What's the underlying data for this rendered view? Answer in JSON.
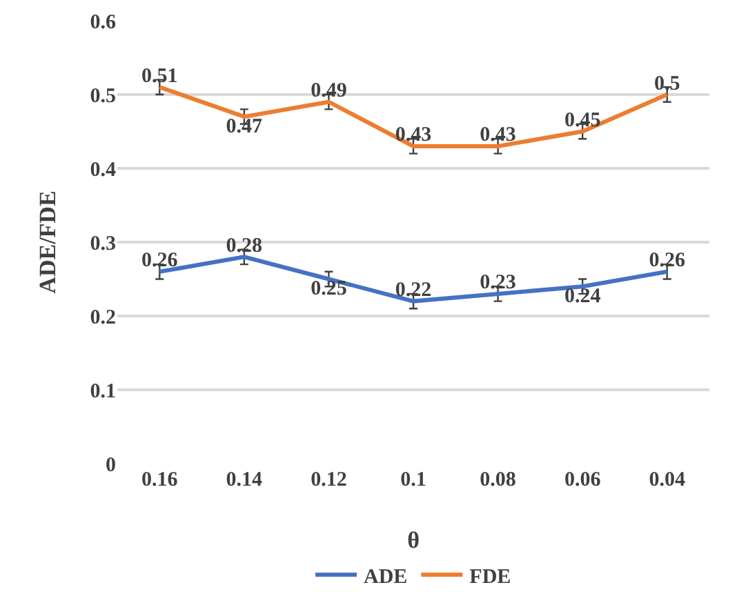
{
  "chart_data": {
    "type": "line",
    "xlabel": "θ",
    "ylabel": "ADE/FDE",
    "categories": [
      "0.16",
      "0.14",
      "0.12",
      "0.1",
      "0.08",
      "0.06",
      "0.04"
    ],
    "series": [
      {
        "name": "ADE",
        "color": "#4472c4",
        "values": [
          0.26,
          0.28,
          0.25,
          0.22,
          0.23,
          0.24,
          0.26
        ],
        "errors": [
          0.01,
          0.01,
          0.01,
          0.01,
          0.01,
          0.01,
          0.01
        ]
      },
      {
        "name": "FDE",
        "color": "#ed7d31",
        "values": [
          0.51,
          0.47,
          0.49,
          0.43,
          0.43,
          0.45,
          0.5
        ],
        "errors": [
          0.01,
          0.01,
          0.01,
          0.01,
          0.01,
          0.01,
          0.01
        ]
      }
    ],
    "ylim": [
      0,
      0.6
    ],
    "yticks": [
      0,
      0.1,
      0.2,
      0.3,
      0.4,
      0.5,
      0.6
    ],
    "grid": "y",
    "legend": "bottom",
    "data_labels": true,
    "marker": "none",
    "line_style": "solid"
  }
}
